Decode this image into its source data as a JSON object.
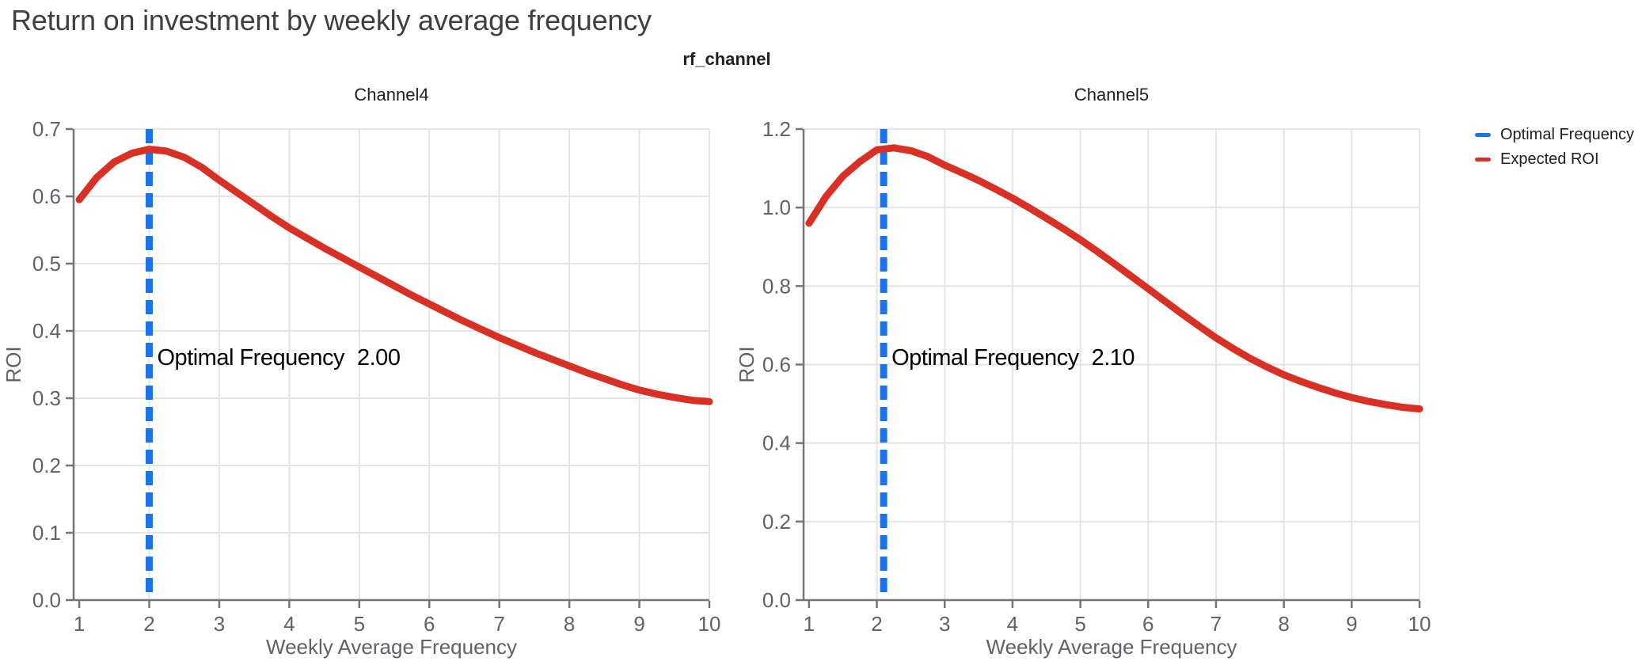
{
  "page_title": "Return on investment by weekly average frequency",
  "facet_label": "rf_channel",
  "legend": {
    "items": [
      {
        "label": "Optimal Frequency",
        "color": "#1A73E8"
      },
      {
        "label": "Expected ROI",
        "color": "#D93025"
      }
    ]
  },
  "colors": {
    "page_title": "#3C4043",
    "facet_label": "#1F1F1F",
    "subplot_title": "#1F1F1F",
    "grid": "#E4E4E4",
    "spine": "#757575",
    "tick_label": "#5F6368",
    "axis_label": "#5F6368",
    "annotation_text": "#000000",
    "optimal_line": "#1A73E8",
    "roi_line": "#D93025"
  },
  "chart_data": [
    {
      "type": "line",
      "title": "Channel4",
      "xlabel": "Weekly Average Frequency",
      "ylabel": "ROI",
      "xlim": [
        0.92,
        10.0
      ],
      "ylim": [
        0,
        0.7
      ],
      "grid": true,
      "xticks": [
        "1",
        "2",
        "3",
        "4",
        "5",
        "6",
        "7",
        "8",
        "9",
        "10"
      ],
      "yticks": [
        "0.0",
        "0.1",
        "0.2",
        "0.3",
        "0.4",
        "0.5",
        "0.6",
        "0.7"
      ],
      "optimal_frequency": 2.0,
      "annotation": "Optimal Frequency  2.00",
      "series": [
        {
          "name": "Expected ROI",
          "x": [
            1.0,
            1.25,
            1.5,
            1.75,
            2.0,
            2.25,
            2.5,
            2.75,
            3.0,
            3.25,
            3.5,
            3.75,
            4.0,
            4.25,
            4.5,
            4.75,
            5.0,
            5.25,
            5.5,
            5.75,
            6.0,
            6.25,
            6.5,
            6.75,
            7.0,
            7.25,
            7.5,
            7.75,
            8.0,
            8.25,
            8.5,
            8.75,
            9.0,
            9.25,
            9.5,
            9.75,
            10.0
          ],
          "y": [
            0.595,
            0.628,
            0.651,
            0.664,
            0.67,
            0.667,
            0.658,
            0.643,
            0.624,
            0.606,
            0.588,
            0.57,
            0.553,
            0.538,
            0.523,
            0.509,
            0.495,
            0.481,
            0.467,
            0.453,
            0.44,
            0.427,
            0.414,
            0.402,
            0.39,
            0.379,
            0.368,
            0.358,
            0.348,
            0.338,
            0.329,
            0.32,
            0.312,
            0.306,
            0.301,
            0.297,
            0.295
          ]
        }
      ]
    },
    {
      "type": "line",
      "title": "Channel5",
      "xlabel": "Weekly Average Frequency",
      "ylabel": "ROI",
      "xlim": [
        0.92,
        10.0
      ],
      "ylim": [
        0,
        1.2
      ],
      "grid": true,
      "xticks": [
        "1",
        "2",
        "3",
        "4",
        "5",
        "6",
        "7",
        "8",
        "9",
        "10"
      ],
      "yticks": [
        "0.0",
        "0.2",
        "0.4",
        "0.6",
        "0.8",
        "1.0",
        "1.2"
      ],
      "optimal_frequency": 2.1,
      "annotation": "Optimal Frequency  2.10",
      "series": [
        {
          "name": "Expected ROI",
          "x": [
            1.0,
            1.25,
            1.5,
            1.75,
            2.0,
            2.25,
            2.5,
            2.75,
            3.0,
            3.25,
            3.5,
            3.75,
            4.0,
            4.25,
            4.5,
            4.75,
            5.0,
            5.25,
            5.5,
            5.75,
            6.0,
            6.25,
            6.5,
            6.75,
            7.0,
            7.25,
            7.5,
            7.75,
            8.0,
            8.25,
            8.5,
            8.75,
            9.0,
            9.25,
            9.5,
            9.75,
            10.0
          ],
          "y": [
            0.96,
            1.028,
            1.08,
            1.117,
            1.147,
            1.152,
            1.145,
            1.13,
            1.108,
            1.089,
            1.069,
            1.047,
            1.024,
            0.999,
            0.973,
            0.946,
            0.918,
            0.888,
            0.857,
            0.825,
            0.793,
            0.761,
            0.729,
            0.698,
            0.668,
            0.641,
            0.616,
            0.594,
            0.574,
            0.557,
            0.542,
            0.528,
            0.516,
            0.506,
            0.498,
            0.491,
            0.487
          ]
        }
      ]
    }
  ]
}
